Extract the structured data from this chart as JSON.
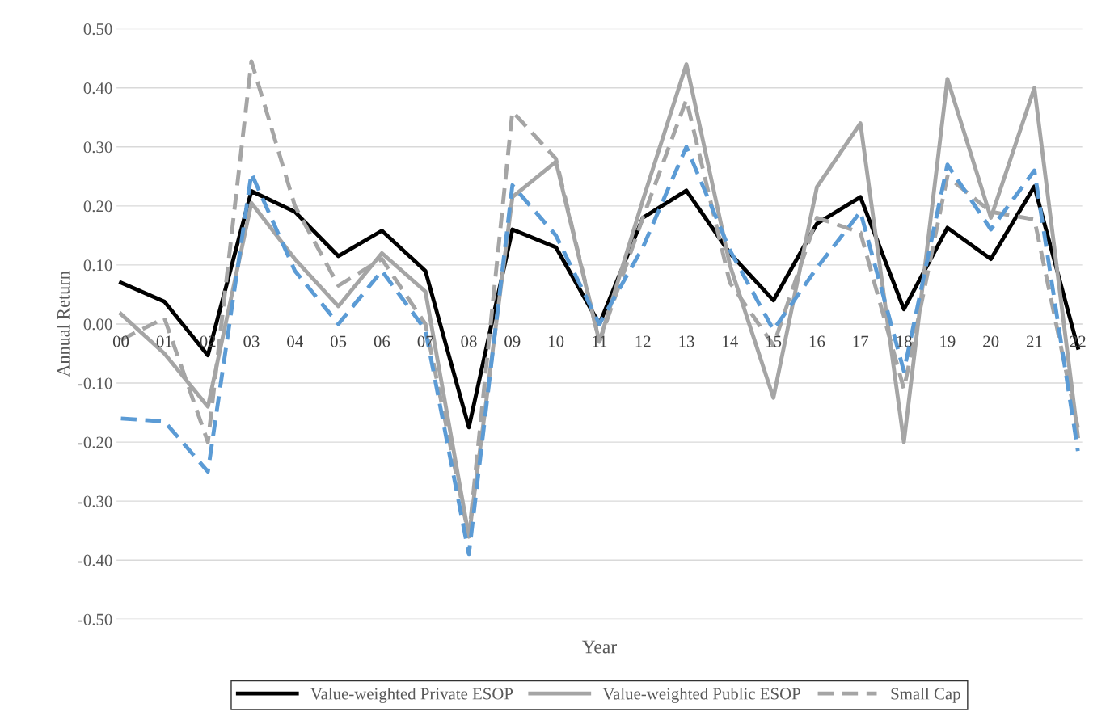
{
  "chart_data": {
    "type": "line",
    "xlabel": "Year",
    "ylabel": "Annual Return",
    "categories": [
      "00",
      "01",
      "02",
      "03",
      "04",
      "05",
      "06",
      "07",
      "08",
      "09",
      "10",
      "11",
      "12",
      "13",
      "14",
      "15",
      "16",
      "17",
      "18",
      "19",
      "20",
      "21",
      "22"
    ],
    "series": [
      {
        "name": "Value-weighted Private ESOP",
        "color": "#000000",
        "line_style": "solid",
        "values": [
          0.07,
          0.038,
          -0.053,
          0.225,
          0.19,
          0.115,
          0.158,
          0.09,
          -0.175,
          0.16,
          0.13,
          0.0,
          0.18,
          0.226,
          0.12,
          0.04,
          0.17,
          0.215,
          0.025,
          0.163,
          0.11,
          0.233,
          -0.04
        ]
      },
      {
        "name": "Value-weighted Public ESOP",
        "color": "#a5a5a5",
        "line_style": "solid",
        "values": [
          0.017,
          -0.05,
          -0.14,
          0.205,
          0.11,
          0.03,
          0.12,
          0.055,
          -0.36,
          0.215,
          0.275,
          -0.03,
          0.21,
          0.44,
          0.1,
          -0.125,
          0.232,
          0.34,
          -0.2,
          0.415,
          0.18,
          0.4,
          -0.19
        ]
      },
      {
        "name": "Small Cap",
        "color": "#a5a5a5",
        "line_style": "dashed",
        "values": [
          -0.027,
          0.01,
          -0.2,
          0.445,
          0.2,
          0.065,
          0.11,
          0.0,
          -0.36,
          0.36,
          0.28,
          -0.03,
          0.18,
          0.38,
          0.07,
          -0.036,
          0.18,
          0.155,
          -0.11,
          0.25,
          0.19,
          0.177,
          -0.176
        ]
      },
      {
        "color": "#5b9bd5",
        "line_style": "dashed",
        "values": [
          -0.16,
          -0.165,
          -0.25,
          0.255,
          0.09,
          0.0,
          0.09,
          -0.01,
          -0.39,
          0.235,
          0.15,
          0.0,
          0.13,
          0.3,
          0.125,
          -0.01,
          0.095,
          0.19,
          -0.08,
          0.27,
          0.16,
          0.26,
          -0.215
        ]
      }
    ],
    "ylim": [
      -0.5,
      0.5
    ],
    "yticks": [
      {
        "value": -0.5,
        "label": "-0.50"
      },
      {
        "value": -0.4,
        "label": "-0.40"
      },
      {
        "value": -0.3,
        "label": "-0.30"
      },
      {
        "value": -0.2,
        "label": "-0.20"
      },
      {
        "value": -0.1,
        "label": "-0.10"
      },
      {
        "value": 0,
        "label": "0.00"
      },
      {
        "value": 0.1,
        "label": "0.10"
      },
      {
        "value": 0.2,
        "label": "0.20"
      },
      {
        "value": 0.3,
        "label": "0.30"
      },
      {
        "value": 0.4,
        "label": "0.40"
      },
      {
        "value": 0.5,
        "label": "0.50"
      }
    ],
    "grid": "y",
    "legend": "bottom",
    "marker": "none"
  }
}
